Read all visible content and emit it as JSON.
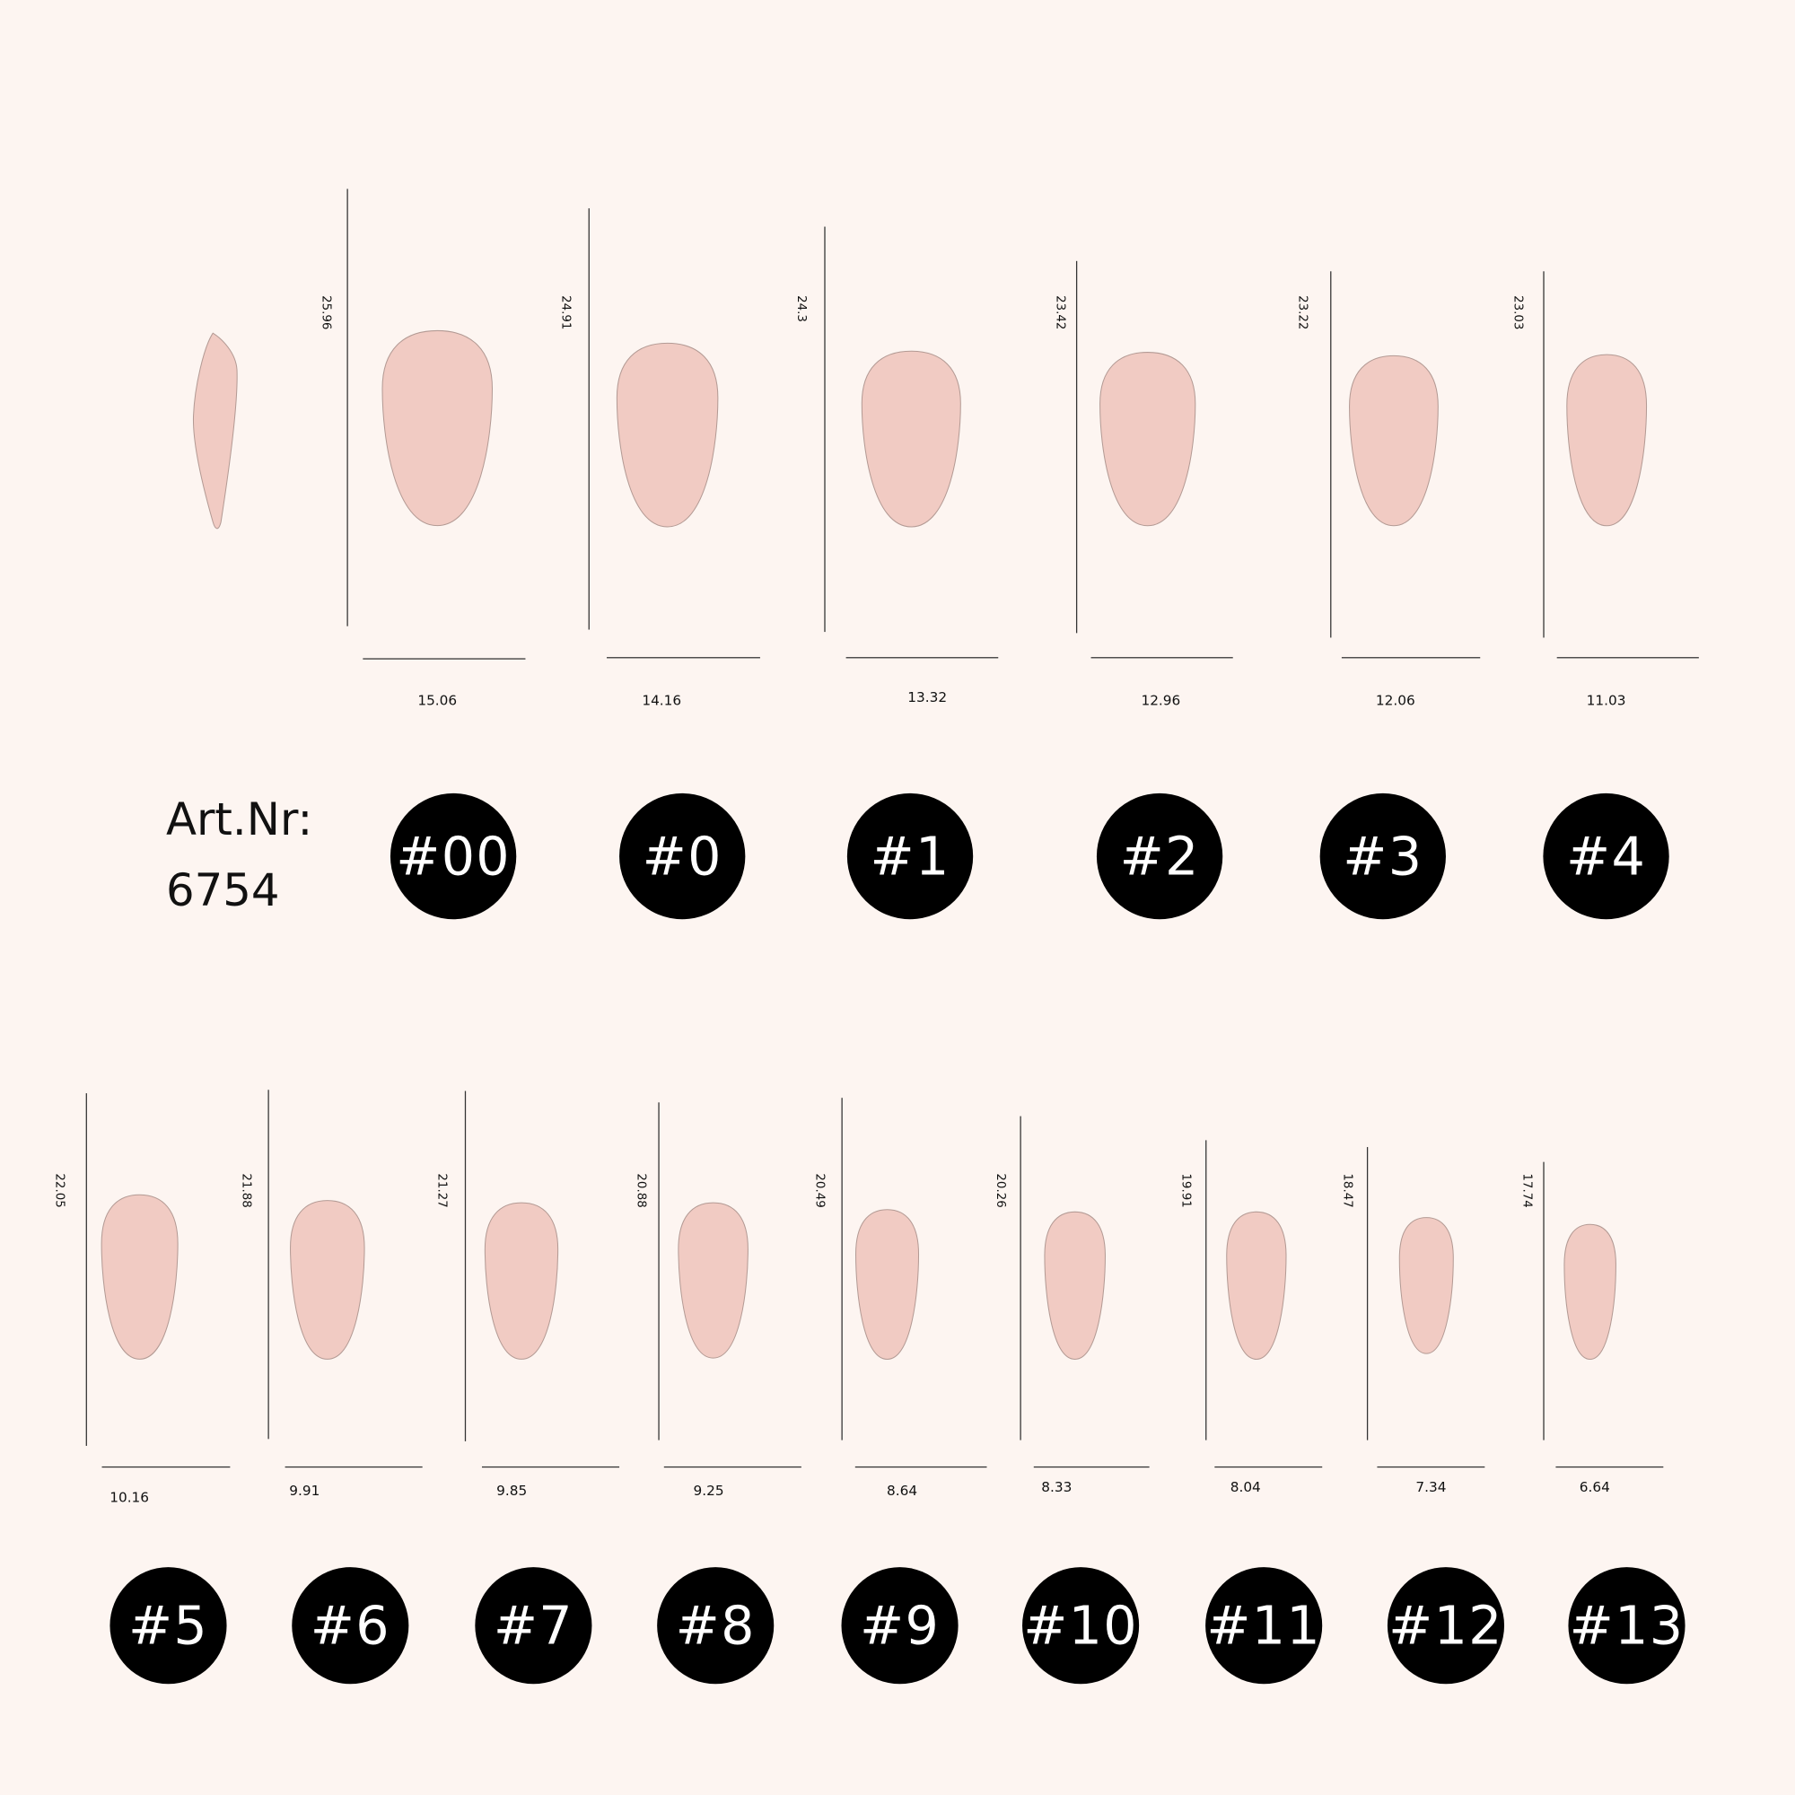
{
  "colors": {
    "background": "#fdf5f1",
    "nail_fill": "#f1cbc3",
    "nail_stroke": "#b39a94",
    "badge": "#000000"
  },
  "article": {
    "label": "Art.Nr:",
    "number": "6754"
  },
  "sizes": [
    {
      "label": "#00",
      "length": "25.96",
      "width": "15.06"
    },
    {
      "label": "#0",
      "length": "24.91",
      "width": "14.16"
    },
    {
      "label": "#1",
      "length": "24.3",
      "width": "13.32"
    },
    {
      "label": "#2",
      "length": "23.42",
      "width": "12.96"
    },
    {
      "label": "#3",
      "length": "23.22",
      "width": "12.06"
    },
    {
      "label": "#4",
      "length": "23.03",
      "width": "11.03"
    },
    {
      "label": "#5",
      "length": "22.05",
      "width": "10.16"
    },
    {
      "label": "#6",
      "length": "21.88",
      "width": "9.91"
    },
    {
      "label": "#7",
      "length": "21.27",
      "width": "9.85"
    },
    {
      "label": "#8",
      "length": "20.88",
      "width": "9.25"
    },
    {
      "label": "#9",
      "length": "20.49",
      "width": "8.64"
    },
    {
      "label": "#10",
      "length": "20.26",
      "width": "8.33"
    },
    {
      "label": "#11",
      "length": "19.91",
      "width": "8.04"
    },
    {
      "label": "#12",
      "length": "18.47",
      "width": "7.34"
    },
    {
      "label": "#13",
      "length": "17.74",
      "width": "6.64"
    }
  ]
}
